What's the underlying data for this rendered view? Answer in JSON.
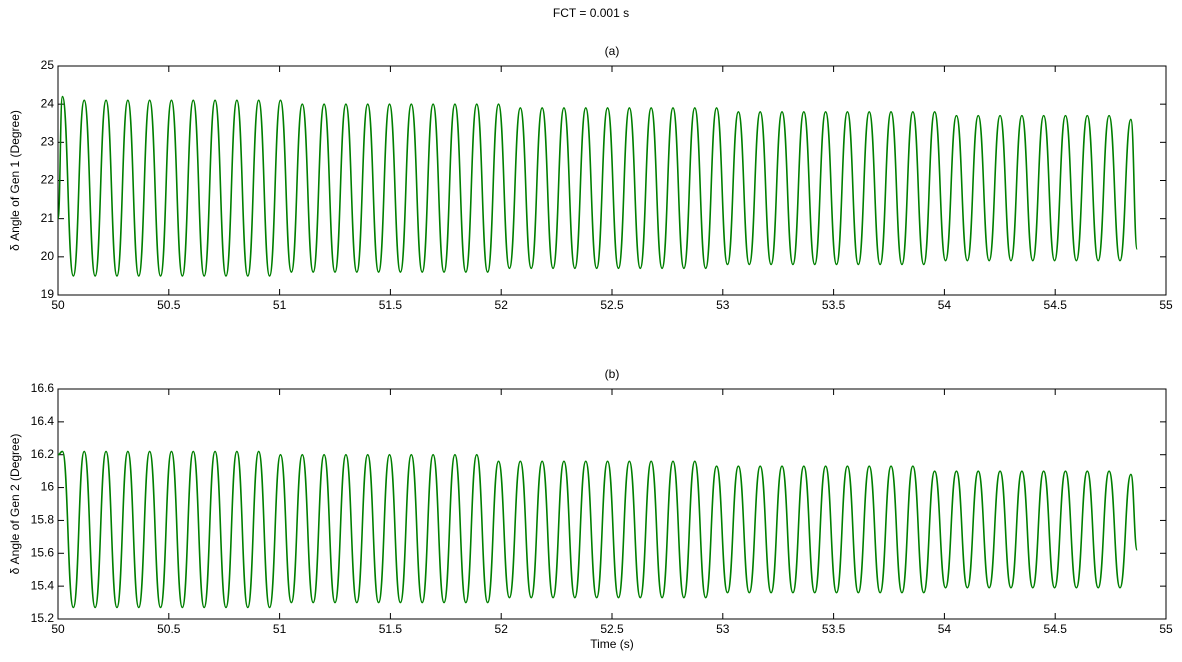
{
  "title": "FCT = 0.001 s",
  "chart_data": [
    {
      "type": "line",
      "title": "(a)",
      "ylabel": "δ Angle of Gen 1 (Degree)",
      "color": "#007f00",
      "xlim": [
        50,
        55
      ],
      "xticks": [
        50,
        50.5,
        51,
        51.5,
        52,
        52.5,
        53,
        53.5,
        54,
        54.5,
        55
      ],
      "ylim": [
        19,
        25
      ],
      "yticks": [
        19,
        20,
        21,
        22,
        23,
        24,
        25
      ],
      "x": [
        50,
        50.02,
        50.0692,
        50.1184,
        50.1676,
        50.2168,
        50.266,
        50.3152,
        50.3644,
        50.4136,
        50.4628,
        50.512,
        50.5612,
        50.6104,
        50.6596,
        50.7088,
        50.758,
        50.8072,
        50.8564,
        50.9056,
        50.9548,
        51.004,
        51.0532,
        51.1024,
        51.1516,
        51.2008,
        51.25,
        51.2992,
        51.3484,
        51.3976,
        51.4468,
        51.496,
        51.5452,
        51.5944,
        51.6436,
        51.6928,
        51.742,
        51.7912,
        51.8404,
        51.8896,
        51.9388,
        51.988,
        52.0372,
        52.0864,
        52.1356,
        52.1848,
        52.234,
        52.2832,
        52.3324,
        52.3816,
        52.4308,
        52.48,
        52.5292,
        52.5784,
        52.6276,
        52.6768,
        52.726,
        52.7752,
        52.8244,
        52.8736,
        52.9228,
        52.972,
        53.0212,
        53.0704,
        53.1196,
        53.1688,
        53.218,
        53.2672,
        53.3164,
        53.3656,
        53.4148,
        53.464,
        53.5132,
        53.5624,
        53.6116,
        53.6608,
        53.71,
        53.7592,
        53.8084,
        53.8576,
        53.9068,
        53.956,
        54.0052,
        54.0544,
        54.1036,
        54.1528,
        54.202,
        54.2512,
        54.3004,
        54.3496,
        54.3988,
        54.448,
        54.4972,
        54.5464,
        54.5956,
        54.6448,
        54.694,
        54.7432,
        54.7924,
        54.8416,
        54.87
      ],
      "values": [
        21.0,
        24.2,
        19.5,
        24.1,
        19.5,
        24.1,
        19.5,
        24.1,
        19.5,
        24.1,
        19.5,
        24.1,
        19.5,
        24.1,
        19.5,
        24.1,
        19.5,
        24.1,
        19.5,
        24.1,
        19.5,
        24.1,
        19.6,
        24.0,
        19.6,
        24.0,
        19.6,
        24.0,
        19.6,
        24.0,
        19.6,
        24.0,
        19.6,
        24.0,
        19.6,
        24.0,
        19.6,
        24.0,
        19.6,
        24.0,
        19.6,
        24.0,
        19.7,
        23.9,
        19.7,
        23.9,
        19.7,
        23.9,
        19.7,
        23.9,
        19.7,
        23.9,
        19.7,
        23.9,
        19.7,
        23.9,
        19.7,
        23.9,
        19.7,
        23.9,
        19.7,
        23.9,
        19.8,
        23.8,
        19.8,
        23.8,
        19.8,
        23.8,
        19.8,
        23.8,
        19.8,
        23.8,
        19.8,
        23.8,
        19.8,
        23.8,
        19.8,
        23.8,
        19.8,
        23.8,
        19.8,
        23.8,
        19.9,
        23.7,
        19.9,
        23.7,
        19.9,
        23.7,
        19.9,
        23.7,
        19.9,
        23.7,
        19.9,
        23.7,
        19.9,
        23.7,
        19.9,
        23.7,
        19.9,
        23.6,
        20.2
      ]
    },
    {
      "type": "line",
      "title": "(b)",
      "ylabel": "δ Angle of Gen 2 (Degree)",
      "xlabel": "Time (s)",
      "color": "#007f00",
      "xlim": [
        50,
        55
      ],
      "xticks": [
        50,
        50.5,
        51,
        51.5,
        52,
        52.5,
        53,
        53.5,
        54,
        54.5,
        55
      ],
      "ylim": [
        15.2,
        16.6
      ],
      "yticks": [
        15.2,
        15.4,
        15.6,
        15.8,
        16,
        16.2,
        16.4,
        16.6
      ],
      "x": [
        50,
        50.02,
        50.0692,
        50.1184,
        50.1676,
        50.2168,
        50.266,
        50.3152,
        50.3644,
        50.4136,
        50.4628,
        50.512,
        50.5612,
        50.6104,
        50.6596,
        50.7088,
        50.758,
        50.8072,
        50.8564,
        50.9056,
        50.9548,
        51.004,
        51.0532,
        51.1024,
        51.1516,
        51.2008,
        51.25,
        51.2992,
        51.3484,
        51.3976,
        51.4468,
        51.496,
        51.5452,
        51.5944,
        51.6436,
        51.6928,
        51.742,
        51.7912,
        51.8404,
        51.8896,
        51.9388,
        51.988,
        52.0372,
        52.0864,
        52.1356,
        52.1848,
        52.234,
        52.2832,
        52.3324,
        52.3816,
        52.4308,
        52.48,
        52.5292,
        52.5784,
        52.6276,
        52.6768,
        52.726,
        52.7752,
        52.8244,
        52.8736,
        52.9228,
        52.972,
        53.0212,
        53.0704,
        53.1196,
        53.1688,
        53.218,
        53.2672,
        53.3164,
        53.3656,
        53.4148,
        53.464,
        53.5132,
        53.5624,
        53.6116,
        53.6608,
        53.71,
        53.7592,
        53.8084,
        53.8576,
        53.9068,
        53.956,
        54.0052,
        54.0544,
        54.1036,
        54.1528,
        54.202,
        54.2512,
        54.3004,
        54.3496,
        54.3988,
        54.448,
        54.4972,
        54.5464,
        54.5956,
        54.6448,
        54.694,
        54.7432,
        54.7924,
        54.8416,
        54.87
      ],
      "values": [
        16.2,
        16.22,
        15.27,
        16.22,
        15.27,
        16.22,
        15.27,
        16.22,
        15.27,
        16.22,
        15.27,
        16.22,
        15.27,
        16.22,
        15.27,
        16.22,
        15.27,
        16.22,
        15.27,
        16.22,
        15.27,
        16.2,
        15.3,
        16.2,
        15.3,
        16.2,
        15.3,
        16.2,
        15.3,
        16.2,
        15.3,
        16.2,
        15.3,
        16.2,
        15.3,
        16.2,
        15.3,
        16.2,
        15.3,
        16.2,
        15.3,
        16.16,
        15.33,
        16.16,
        15.33,
        16.16,
        15.33,
        16.16,
        15.33,
        16.16,
        15.33,
        16.16,
        15.33,
        16.16,
        15.33,
        16.16,
        15.33,
        16.16,
        15.33,
        16.16,
        15.33,
        16.13,
        15.36,
        16.13,
        15.36,
        16.13,
        15.36,
        16.13,
        15.36,
        16.13,
        15.36,
        16.13,
        15.36,
        16.13,
        15.36,
        16.13,
        15.36,
        16.13,
        15.36,
        16.13,
        15.36,
        16.1,
        15.39,
        16.1,
        15.39,
        16.1,
        15.39,
        16.1,
        15.39,
        16.1,
        15.39,
        16.1,
        15.39,
        16.1,
        15.39,
        16.1,
        15.39,
        16.1,
        15.39,
        16.08,
        15.62
      ]
    }
  ]
}
